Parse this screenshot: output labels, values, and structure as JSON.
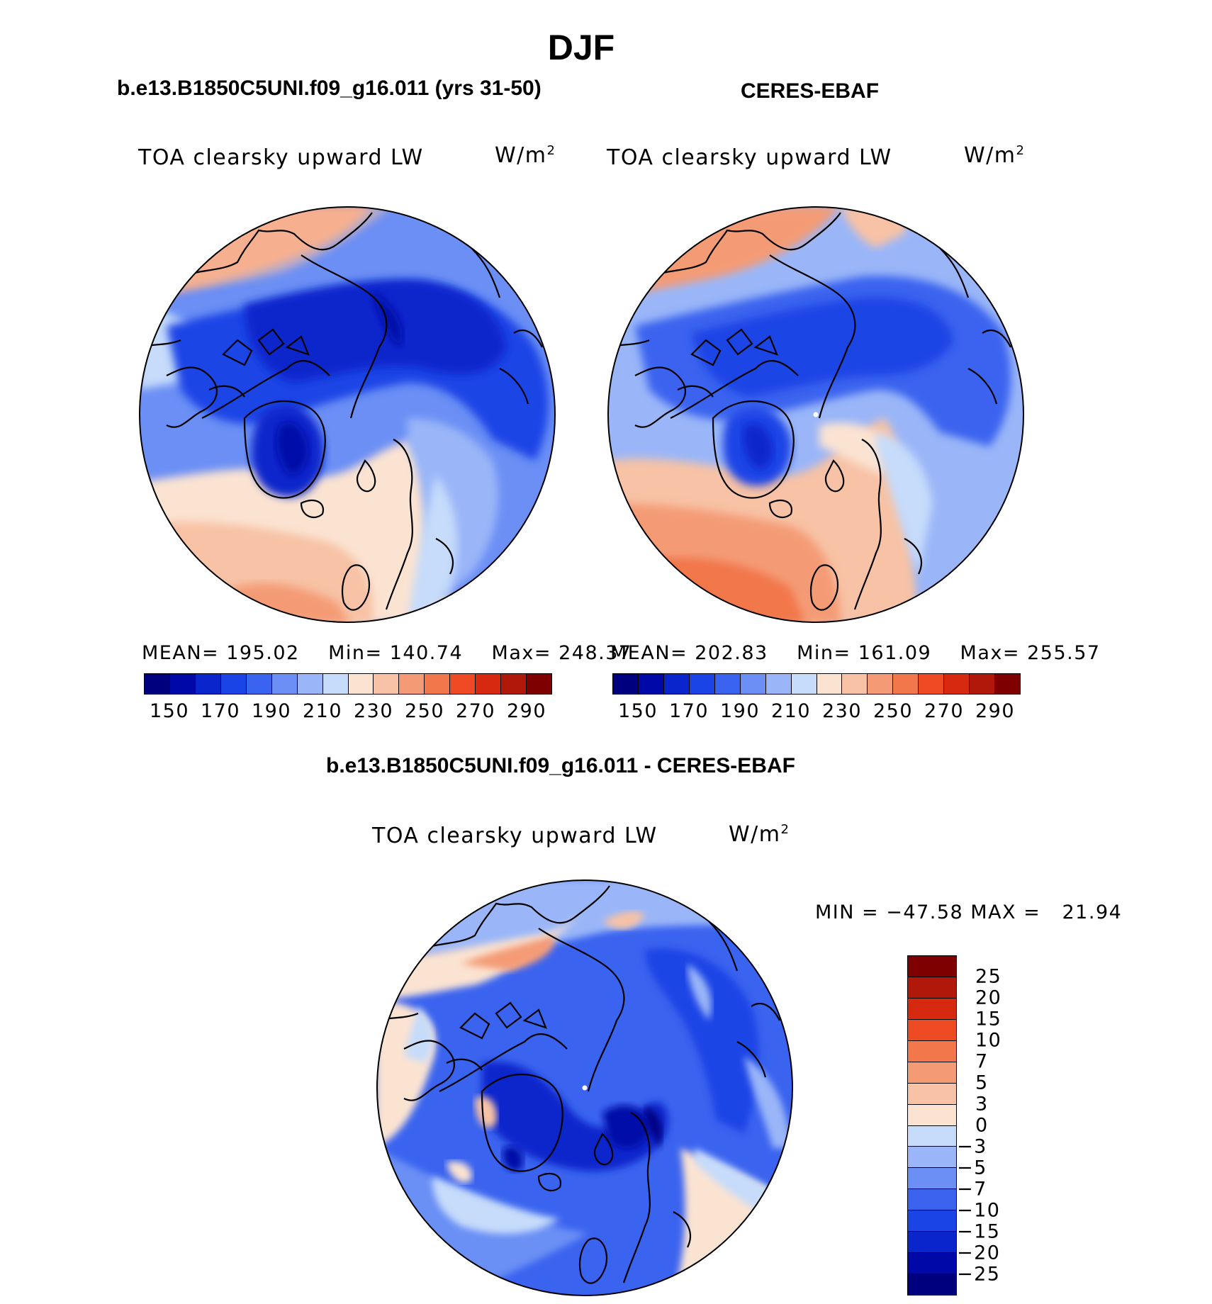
{
  "figure": {
    "season": "DJF",
    "left_title": "b.e13.B1850C5UNI.f09_g16.011 (yrs 31-50)",
    "right_title": "CERES-EBAF",
    "diff_title": "b.e13.B1850C5UNI.f09_g16.011 - CERES-EBAF"
  },
  "panels": [
    {
      "variable": "TOA clearsky upward LW",
      "units": "W/m",
      "units_exp": "2",
      "stats": {
        "mean_label": "MEAN=",
        "mean": "195.02",
        "min_label": "Min=",
        "min": "140.74",
        "max_label": "Max=",
        "max": "248.37"
      }
    },
    {
      "variable": "TOA clearsky upward LW",
      "units": "W/m",
      "units_exp": "2",
      "stats": {
        "mean_label": "MEAN=",
        "mean": "202.83",
        "min_label": "Min=",
        "min": "161.09",
        "max_label": "Max=",
        "max": "255.57"
      }
    },
    {
      "variable": "TOA clearsky upward LW",
      "units": "W/m",
      "units_exp": "2",
      "minmax": {
        "min_label": "MIN =",
        "min": "−47.58",
        "max_label": "MAX =",
        "max": "21.94"
      }
    }
  ],
  "colorbars": {
    "absolute": {
      "colors": [
        "#00007f",
        "#0008a8",
        "#0a25cc",
        "#1a44e6",
        "#3a63ef",
        "#6b8ff5",
        "#9ab6f8",
        "#c6dcfa",
        "#fbe3d1",
        "#f7c2a5",
        "#f49b76",
        "#f2774b",
        "#ee4a23",
        "#d7290f",
        "#b0180a",
        "#7f0000"
      ],
      "labels": [
        "150",
        "170",
        "190",
        "210",
        "230",
        "250",
        "270",
        "290"
      ]
    },
    "difference": {
      "colors": [
        "#7f0000",
        "#b0180a",
        "#d7290f",
        "#ee4a23",
        "#f2774b",
        "#f49b76",
        "#f7c2a5",
        "#fbe3d1",
        "#c6dcfa",
        "#9ab6f8",
        "#6b8ff5",
        "#3a63ef",
        "#1a44e6",
        "#0a25cc",
        "#0008a8",
        "#00007f"
      ],
      "labels": [
        "25",
        "20",
        "15",
        "10",
        "7",
        "5",
        "3",
        "0",
        "−3",
        "−5",
        "−7",
        "−10",
        "−15",
        "−20",
        "−25"
      ]
    }
  }
}
